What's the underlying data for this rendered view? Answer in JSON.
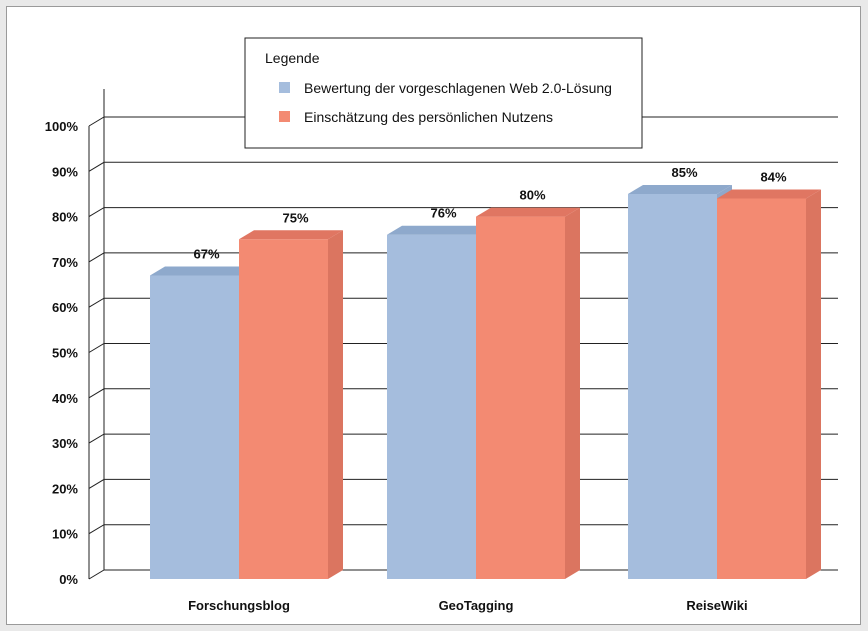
{
  "chart_data": {
    "type": "bar",
    "categories": [
      "Forschungsblog",
      "GeoTagging",
      "ReiseWiki"
    ],
    "series": [
      {
        "name": "Bewertung der vorgeschlagenen Web 2.0-Lösung",
        "values": [
          67,
          76,
          85
        ],
        "color": "#a5bddd",
        "top_color": "#8ea9cc",
        "side_color": "#8fa8cb"
      },
      {
        "name": "Einschätzung des persönlichen Nutzens",
        "values": [
          75,
          80,
          84
        ],
        "color": "#f38a72",
        "top_color": "#e07662",
        "side_color": "#db7560"
      }
    ],
    "data_labels": [
      [
        "67%",
        "76%",
        "85%"
      ],
      [
        "75%",
        "80%",
        "84%"
      ]
    ],
    "y_ticks": [
      0,
      10,
      20,
      30,
      40,
      50,
      60,
      70,
      80,
      90,
      100
    ],
    "y_tick_labels": [
      "0%",
      "10%",
      "20%",
      "30%",
      "40%",
      "50%",
      "60%",
      "70%",
      "80%",
      "90%",
      "100%"
    ],
    "ylim": [
      0,
      100
    ],
    "grid": true,
    "legend": {
      "title": "Legende",
      "placement": "top-center"
    },
    "title": "",
    "xlabel": "",
    "ylabel": ""
  }
}
